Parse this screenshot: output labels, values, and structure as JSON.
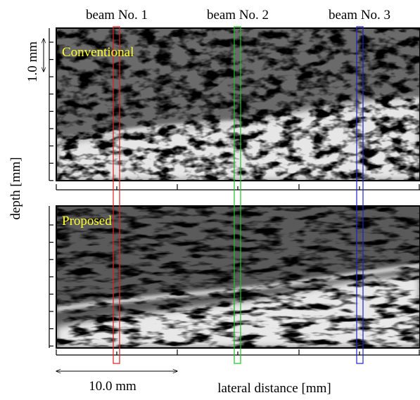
{
  "beam_labels": [
    "beam No. 1",
    "beam No. 2",
    "beam No. 3"
  ],
  "scale_bar_vertical": "1.0 mm",
  "panels": [
    {
      "label": "Conventional"
    },
    {
      "label": "Proposed"
    }
  ],
  "y_axis_label": "depth [mm]",
  "scale_bar_horizontal": "10.0 mm",
  "x_axis_label": "lateral distance [mm]"
}
